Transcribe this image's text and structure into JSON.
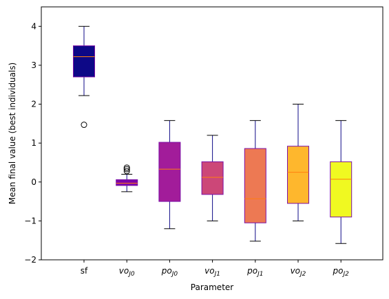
{
  "chart_data": {
    "type": "box",
    "title": "",
    "xlabel": "Parameter",
    "ylabel": "Mean final value (best individuals)",
    "ylim": [
      -2,
      4.5
    ],
    "yticks": [
      -2,
      -1,
      0,
      1,
      2,
      3,
      4
    ],
    "grid": false,
    "categories": [
      {
        "base": "sf",
        "sub": ""
      },
      {
        "base": "vo",
        "sub": "J0"
      },
      {
        "base": "po",
        "sub": "J0"
      },
      {
        "base": "vo",
        "sub": "J1"
      },
      {
        "base": "po",
        "sub": "J1"
      },
      {
        "base": "vo",
        "sub": "J2"
      },
      {
        "base": "po",
        "sub": "J2"
      }
    ],
    "boxes": [
      {
        "whisker_low": 2.22,
        "q1": 2.7,
        "median": 3.22,
        "q3": 3.5,
        "whisker_high": 4.0,
        "outliers": [
          1.47
        ],
        "fill": "#0d0887"
      },
      {
        "whisker_low": -0.25,
        "q1": -0.09,
        "median": -0.03,
        "q3": 0.06,
        "whisker_high": 0.2,
        "outliers": [
          0.28,
          0.33,
          0.37
        ],
        "fill": "#7e03a8"
      },
      {
        "whisker_low": -1.2,
        "q1": -0.5,
        "median": 0.33,
        "q3": 1.02,
        "whisker_high": 1.58,
        "outliers": [],
        "fill": "#a21c9a"
      },
      {
        "whisker_low": -1.0,
        "q1": -0.32,
        "median": 0.12,
        "q3": 0.52,
        "whisker_high": 1.2,
        "outliers": [],
        "fill": "#cc4778"
      },
      {
        "whisker_low": -1.52,
        "q1": -1.05,
        "median": -0.43,
        "q3": 0.86,
        "whisker_high": 1.58,
        "outliers": [],
        "fill": "#ed7953"
      },
      {
        "whisker_low": -1.0,
        "q1": -0.55,
        "median": 0.25,
        "q3": 0.92,
        "whisker_high": 2.0,
        "outliers": [],
        "fill": "#feb72d"
      },
      {
        "whisker_low": -1.58,
        "q1": -0.9,
        "median": 0.07,
        "q3": 0.52,
        "whisker_high": 1.58,
        "outliers": [],
        "fill": "#f0f921"
      }
    ],
    "box_edge_color": "#7b0fa6",
    "whisker_color": "#0d0887",
    "median_color": "#ff7f0e"
  }
}
